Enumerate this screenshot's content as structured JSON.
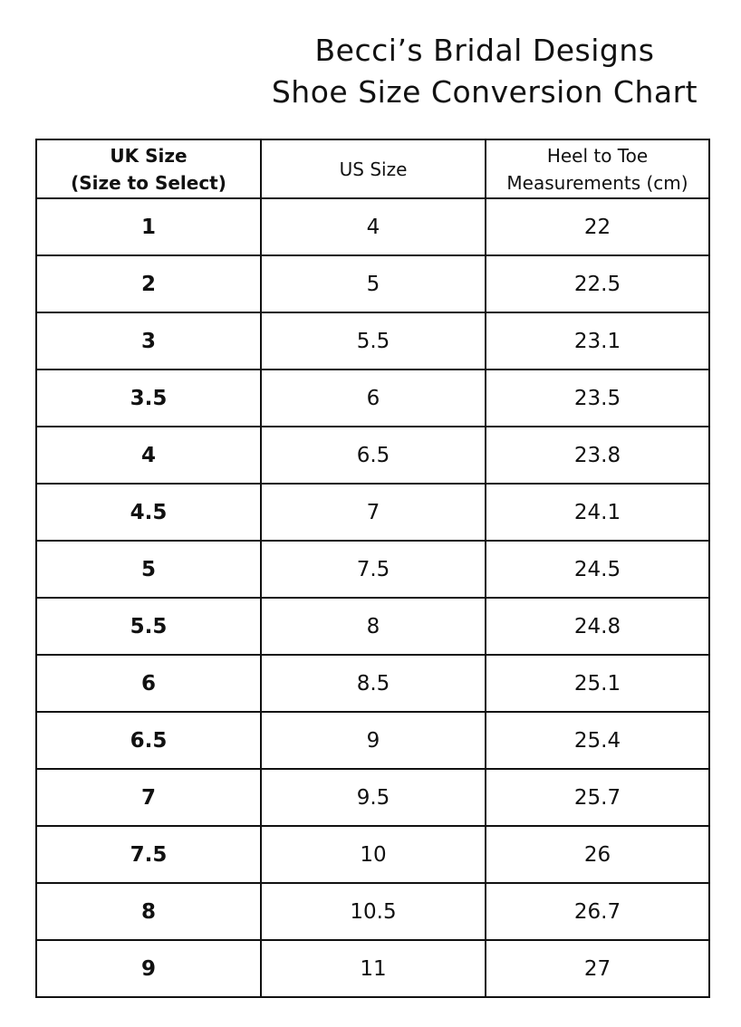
{
  "header": {
    "title_line1": "Becci’s Bridal Designs",
    "title_line2": "Shoe Size Conversion Chart"
  },
  "table": {
    "columns": {
      "uk_line1": "UK Size",
      "uk_line2": "(Size to Select)",
      "us": "US Size",
      "cm_line1": "Heel to Toe",
      "cm_line2": "Measurements (cm)"
    },
    "rows": [
      {
        "uk": "1",
        "us": "4",
        "cm": "22"
      },
      {
        "uk": "2",
        "us": "5",
        "cm": "22.5"
      },
      {
        "uk": "3",
        "us": "5.5",
        "cm": "23.1"
      },
      {
        "uk": "3.5",
        "us": "6",
        "cm": "23.5"
      },
      {
        "uk": "4",
        "us": "6.5",
        "cm": "23.8"
      },
      {
        "uk": "4.5",
        "us": "7",
        "cm": "24.1"
      },
      {
        "uk": "5",
        "us": "7.5",
        "cm": "24.5"
      },
      {
        "uk": "5.5",
        "us": "8",
        "cm": "24.8"
      },
      {
        "uk": "6",
        "us": "8.5",
        "cm": "25.1"
      },
      {
        "uk": "6.5",
        "us": "9",
        "cm": "25.4"
      },
      {
        "uk": "7",
        "us": "9.5",
        "cm": "25.7"
      },
      {
        "uk": "7.5",
        "us": "10",
        "cm": "26"
      },
      {
        "uk": "8",
        "us": "10.5",
        "cm": "26.7"
      },
      {
        "uk": "9",
        "us": "11",
        "cm": "27"
      }
    ]
  }
}
